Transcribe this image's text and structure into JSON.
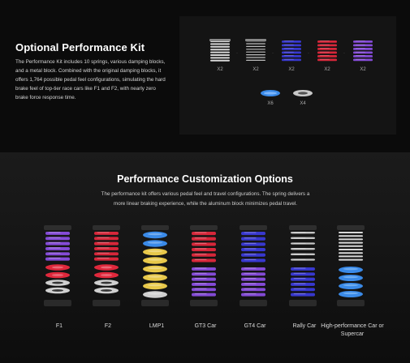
{
  "kit": {
    "title": "Optional Performance Kit",
    "description": "The Performance Kit includes 10 springs, various damping blocks, and a metal block. Combined with the original damping blocks, it offers 1,764 possible pedal feel configurations, simulating the hard brake feel of top-tier race cars like F1 and F2, with nearly zero brake force response time.",
    "springs": [
      {
        "color": "#d8d8d8",
        "qty": "X2",
        "style": "wire"
      },
      {
        "color": "#bdbdbd",
        "qty": "X2",
        "style": "wire-thin"
      },
      {
        "color": "#3a3ad8",
        "qty": "X2",
        "style": "coil"
      },
      {
        "color": "#e0283c",
        "qty": "X2",
        "style": "coil"
      },
      {
        "color": "#8a4ee0",
        "qty": "X2",
        "style": "coil"
      }
    ],
    "blocks": [
      {
        "color": "#3a8ae8",
        "qty": "X6"
      },
      {
        "color": "#c8c8c8",
        "qty": "X4"
      }
    ]
  },
  "options": {
    "title": "Performance Customization Options",
    "description": "The performance kit offers various pedal feel and travel configurations. The spring delivers a more linear braking experience, while the aluminum block minimizes pedal travel.",
    "configs": [
      {
        "label": "F1",
        "top_spring": "#8a4ee0",
        "mid": [],
        "bottom": [
          {
            "c": "#e0283c"
          },
          {
            "c": "#e0283c"
          },
          {
            "c": "#cfcfcf"
          },
          {
            "c": "#cfcfcf"
          }
        ]
      },
      {
        "label": "F2",
        "top_spring": "#e0283c",
        "mid": [],
        "bottom": [
          {
            "c": "#e0283c"
          },
          {
            "c": "#e0283c"
          },
          {
            "c": "#cfcfcf"
          },
          {
            "c": "#cfcfcf"
          }
        ]
      },
      {
        "label": "LMP1",
        "top_spring": "",
        "mid": [],
        "bottom": [
          {
            "c": "#3a8ae8"
          },
          {
            "c": "#3a8ae8"
          },
          {
            "c": "#e8c84a"
          },
          {
            "c": "#e8c84a"
          },
          {
            "c": "#e8c84a"
          },
          {
            "c": "#e8c84a"
          },
          {
            "c": "#e8c84a"
          },
          {
            "c": "#cfcfcf"
          }
        ]
      },
      {
        "label": "GT3 Car",
        "top_spring": "#e0283c",
        "bottom_spring": "#8a4ee0"
      },
      {
        "label": "GT4 Car",
        "top_spring": "#3a3ad8",
        "bottom_spring": "#8a4ee0"
      },
      {
        "label": "Rally Car",
        "top_spring": "#cfcfcf",
        "bottom_spring": "#3a3ad8"
      },
      {
        "label": "High-performance Car or Supercar",
        "top_spring": "#d8d8d8",
        "bottom_blue": true
      }
    ]
  }
}
